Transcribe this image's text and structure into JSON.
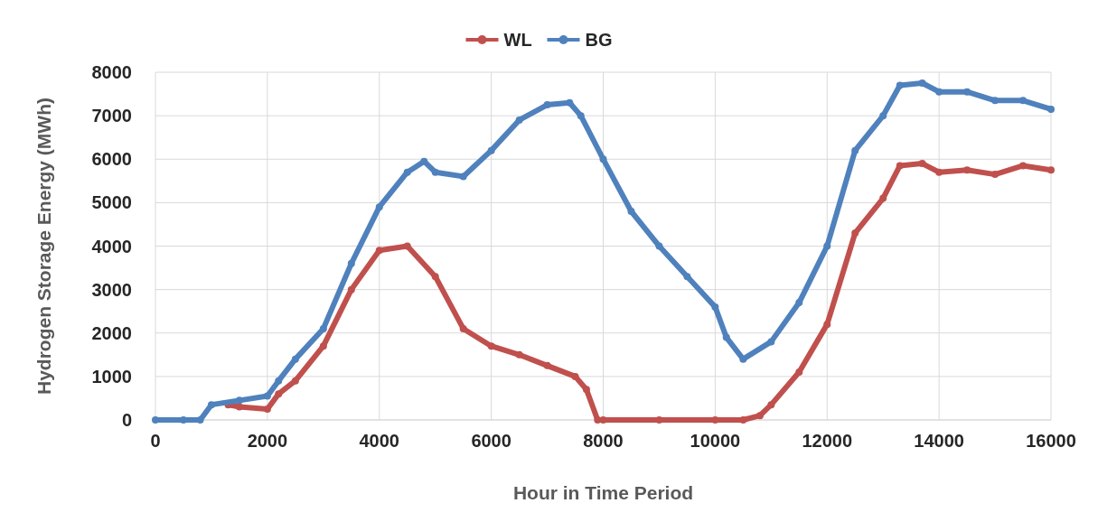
{
  "chart_data": {
    "type": "line",
    "xlabel": "Hour in Time Period",
    "ylabel": "Hydrogen Storage Energy (MWh)",
    "xlim": [
      0,
      16000
    ],
    "xticks": [
      0,
      2000,
      4000,
      6000,
      8000,
      10000,
      12000,
      14000,
      16000
    ],
    "ylim": [
      0,
      8000
    ],
    "yticks": [
      0,
      1000,
      2000,
      3000,
      4000,
      5000,
      6000,
      7000,
      8000
    ],
    "grid": true,
    "legend": "top",
    "marker": "circle",
    "line_style": "solid",
    "series": [
      {
        "name": "WL",
        "color": "#c0504d",
        "x": [
          1300,
          1500,
          2000,
          2200,
          2500,
          3000,
          3500,
          4000,
          4500,
          5000,
          5500,
          6000,
          6500,
          7000,
          7500,
          7700,
          7900,
          8000,
          9000,
          10000,
          10500,
          10800,
          11000,
          11500,
          12000,
          12500,
          13000,
          13300,
          13700,
          14000,
          14500,
          15000,
          15500,
          16000
        ],
        "values": [
          350,
          300,
          250,
          600,
          900,
          1700,
          3000,
          3900,
          4000,
          3300,
          2100,
          1700,
          1500,
          1250,
          1000,
          700,
          0,
          0,
          0,
          0,
          0,
          100,
          350,
          1100,
          2200,
          4300,
          5100,
          5850,
          5900,
          5700,
          5750,
          5650,
          5850,
          5750
        ]
      },
      {
        "name": "BG",
        "color": "#4f81bd",
        "x": [
          0,
          500,
          800,
          1000,
          1500,
          2000,
          2200,
          2500,
          3000,
          3500,
          4000,
          4500,
          4800,
          5000,
          5500,
          6000,
          6500,
          7000,
          7400,
          7600,
          8000,
          8500,
          9000,
          9500,
          10000,
          10200,
          10500,
          11000,
          11500,
          12000,
          12500,
          13000,
          13300,
          13700,
          14000,
          14500,
          15000,
          15500,
          16000
        ],
        "values": [
          0,
          0,
          0,
          350,
          450,
          550,
          900,
          1400,
          2100,
          3600,
          4900,
          5700,
          5950,
          5700,
          5600,
          6200,
          6900,
          7250,
          7300,
          7000,
          6000,
          4800,
          4000,
          3300,
          2600,
          1900,
          1400,
          1800,
          2700,
          4000,
          6200,
          7000,
          7700,
          7750,
          7550,
          7550,
          7350,
          7350,
          7150
        ]
      }
    ]
  }
}
